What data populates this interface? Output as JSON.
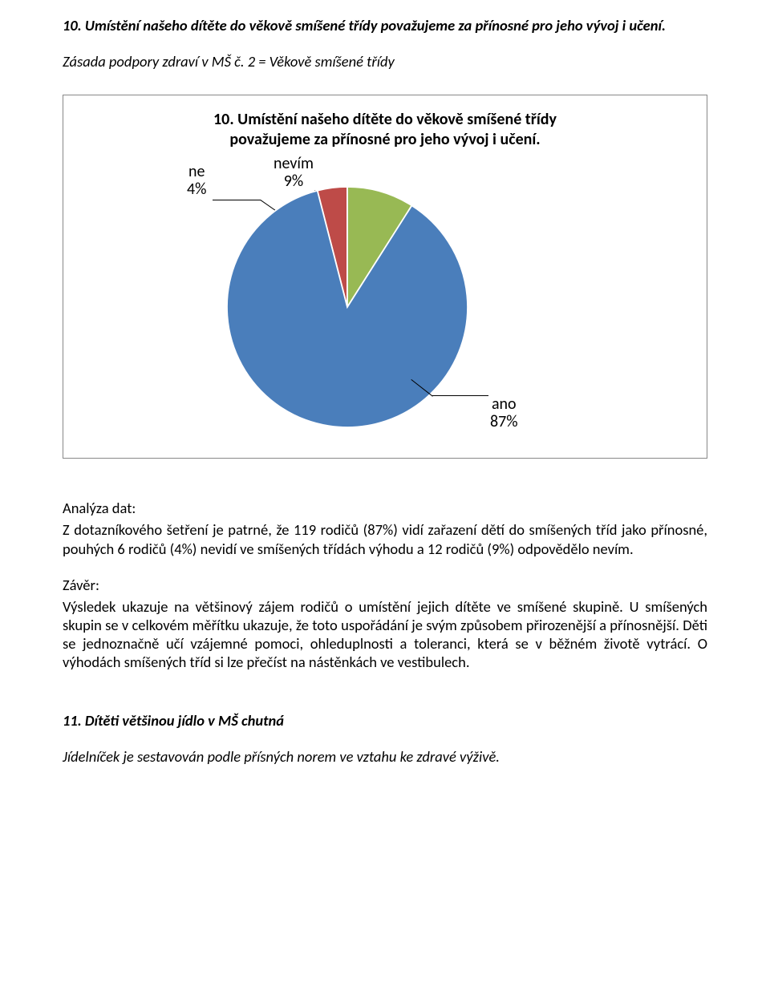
{
  "heading10": "10. Umístění našeho dítěte do věkově smíšené třídy považujeme za přínosné pro jeho vývoj i učení.",
  "principle": "Zásada podpory zdraví v MŠ č. 2 = Věkově smíšené třídy",
  "chart": {
    "title_line1": "10. Umístění našeho dítěte do věkově smíšené třídy",
    "title_line2": "považujeme za přínosné pro jeho vývoj i učení.",
    "slices": [
      {
        "label": "ano",
        "pct": 87,
        "color": "#4a7ebb"
      },
      {
        "label": "ne",
        "pct": 4,
        "color": "#be4b48"
      },
      {
        "label": "nevím",
        "pct": 9,
        "color": "#98b954"
      }
    ],
    "callout_ne": {
      "l1": "ne",
      "l2": "4%"
    },
    "callout_nevim": {
      "l1": "nevím",
      "l2": "9%"
    },
    "callout_ano": {
      "l1": "ano",
      "l2": "87%"
    },
    "bg": "#ffffff",
    "border": "#888888"
  },
  "analysis_label": "Analýza dat:",
  "analysis_text": "Z dotazníkového šetření je patrné, že 119 rodičů (87%) vidí zařazení dětí do smíšených tříd jako přínosné, pouhých 6 rodičů (4%) nevidí ve smíšených třídách výhodu a 12 rodičů (9%) odpovědělo nevím.",
  "conclusion_label": "Závěr:",
  "conclusion_text": "Výsledek ukazuje na většinový zájem rodičů o umístění jejich dítěte ve smíšené skupině. U smíšených skupin se v celkovém měřítku ukazuje, že toto uspořádání je svým způsobem přirozenější a přínosnější. Děti se jednoznačně učí vzájemné pomoci, ohleduplnosti a toleranci, která se v běžném životě vytrácí. O výhodách smíšených tříd si lze přečíst na nástěnkách ve vestibulech.",
  "heading11": "11. Dítěti většinou jídlo v MŠ chutná",
  "final_line": "Jídelníček je sestavován podle přísných norem ve vztahu ke zdravé výživě."
}
